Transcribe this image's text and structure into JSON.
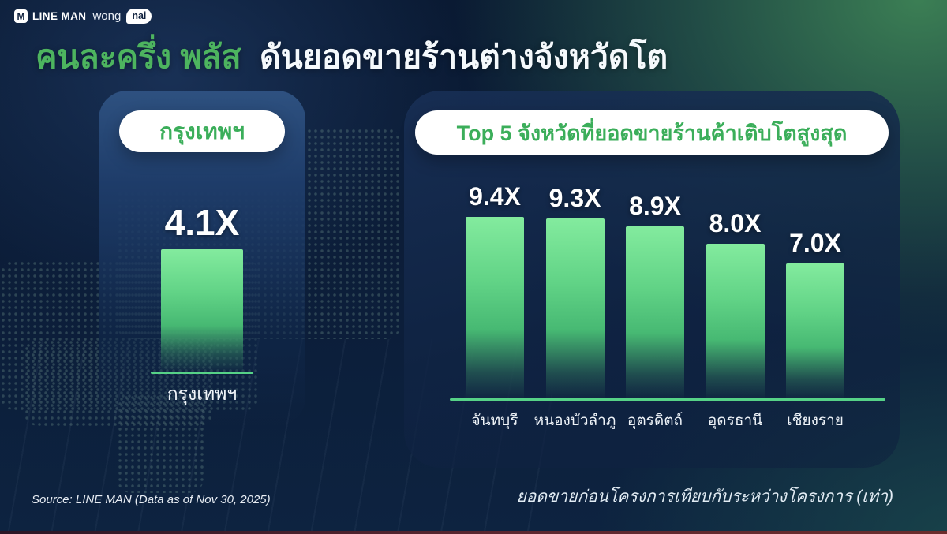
{
  "logo": {
    "icon_letter": "M",
    "lineman": "LINE MAN",
    "wong": "wong",
    "nai": "nai"
  },
  "title": {
    "highlight": "คนละครึ่ง พลัส",
    "rest": "ดันยอดขายร้านต่างจังหวัดโต"
  },
  "footer": {
    "source": "Source: LINE MAN (Data as of Nov 30, 2025)",
    "note": "ยอดขายก่อนโครงการเทียบกับระหว่างโครงการ (เท่า)"
  },
  "colors": {
    "background_navy": "#0c1e3a",
    "glow_green": "#3e8456",
    "title_green": "#4db45f",
    "pill_text_green": "#3bae5a",
    "bar_top_green": "#83eb9e",
    "bar_mid_green": "#47b973",
    "axis_green": "#56d287",
    "text_white": "#f5f9fc",
    "bottom_strip_maroon": "#5d2730"
  },
  "chart_data": [
    {
      "type": "bar",
      "title": "กรุงเทพฯ",
      "categories": [
        "กรุงเทพฯ"
      ],
      "values": [
        4.1
      ],
      "value_labels": [
        "4.1X"
      ],
      "unit": "x growth (เท่า)",
      "ylim": [
        0,
        4.1
      ],
      "grid": false,
      "legend": "none"
    },
    {
      "type": "bar",
      "title": "Top 5 จังหวัดที่ยอดขายร้านค้าเติบโตสูงสุด",
      "categories": [
        "จันทบุรี",
        "หนองบัวลำภู",
        "อุตรดิตถ์",
        "อุดรธานี",
        "เชียงราย"
      ],
      "values": [
        9.4,
        9.3,
        8.9,
        8.0,
        7.0
      ],
      "value_labels": [
        "9.4X",
        "9.3X",
        "8.9X",
        "8.0X",
        "7.0X"
      ],
      "unit": "x growth (เท่า)",
      "ylim": [
        0,
        9.4
      ],
      "grid": false,
      "legend": "none"
    }
  ]
}
